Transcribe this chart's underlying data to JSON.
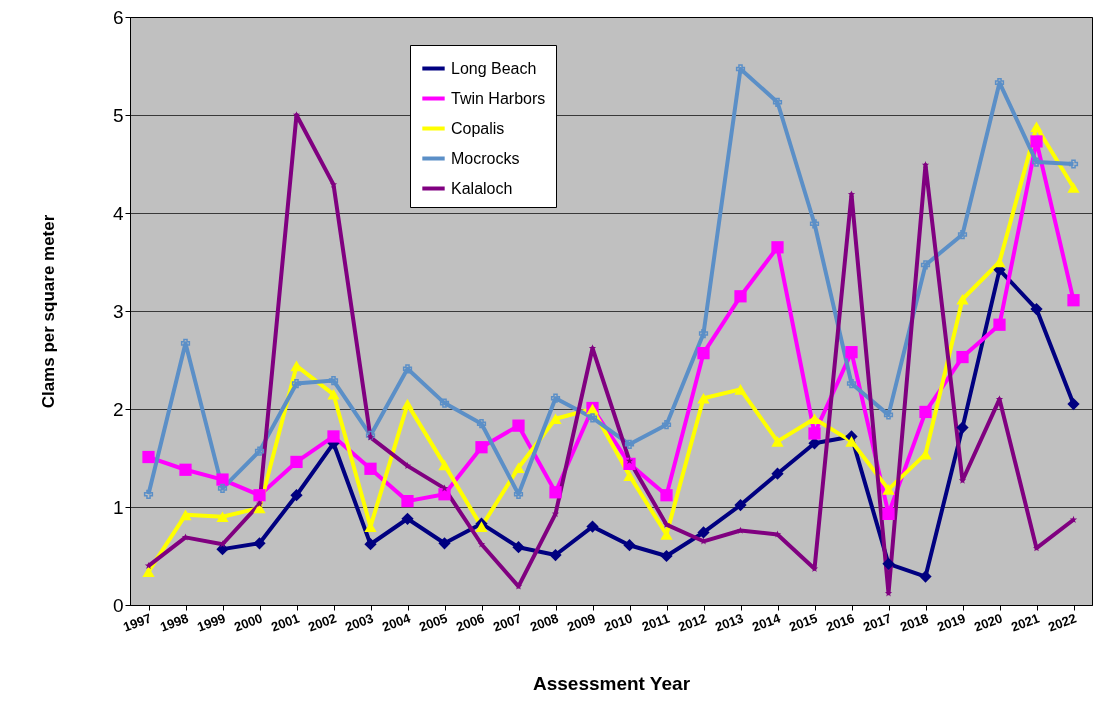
{
  "chart_data": {
    "type": "line",
    "xlabel": "Assessment Year",
    "ylabel": "Clams per square meter",
    "categories": [
      "1997",
      "1998",
      "1999",
      "2000",
      "2001",
      "2002",
      "2003",
      "2004",
      "2005",
      "2006",
      "2007",
      "2008",
      "2009",
      "2010",
      "2011",
      "2012",
      "2013",
      "2014",
      "2015",
      "2016",
      "2017",
      "2018",
      "2019",
      "2020",
      "2021",
      "2022"
    ],
    "series": [
      {
        "name": "Long Beach",
        "color": "#000080",
        "marker": "diamond",
        "values": [
          null,
          null,
          0.57,
          0.63,
          1.12,
          1.65,
          0.62,
          0.88,
          0.63,
          0.83,
          0.59,
          0.51,
          0.8,
          0.61,
          0.5,
          0.74,
          1.02,
          1.34,
          1.65,
          1.72,
          0.42,
          0.29,
          1.81,
          3.42,
          3.02,
          2.05
        ]
      },
      {
        "name": "Twin Harbors",
        "color": "#ff00ff",
        "marker": "square",
        "values": [
          1.51,
          1.38,
          1.28,
          1.12,
          1.46,
          1.72,
          1.39,
          1.06,
          1.13,
          1.61,
          1.83,
          1.15,
          2.01,
          1.44,
          1.12,
          2.57,
          3.15,
          3.65,
          1.75,
          2.58,
          0.93,
          1.97,
          2.53,
          2.86,
          4.73,
          3.11
        ]
      },
      {
        "name": "Copalis",
        "color": "#ffff00",
        "marker": "triangle",
        "values": [
          0.34,
          0.92,
          0.9,
          0.99,
          2.44,
          2.15,
          0.8,
          2.05,
          1.43,
          0.8,
          1.4,
          1.9,
          2.0,
          1.32,
          0.72,
          2.11,
          2.2,
          1.67,
          1.9,
          1.67,
          1.18,
          1.54,
          3.12,
          3.5,
          4.88,
          4.26
        ]
      },
      {
        "name": "Mocrocks",
        "color": "#5b8fc7",
        "marker": "cross",
        "values": [
          1.13,
          2.67,
          1.19,
          1.57,
          2.26,
          2.29,
          1.73,
          2.41,
          2.06,
          1.85,
          1.13,
          2.11,
          1.91,
          1.64,
          1.84,
          2.77,
          5.47,
          5.13,
          3.89,
          2.26,
          1.94,
          3.47,
          3.78,
          5.33,
          4.52,
          4.5
        ]
      },
      {
        "name": "Kalaloch",
        "color": "#800080",
        "marker": "star",
        "values": [
          0.4,
          0.69,
          0.62,
          1.03,
          5.0,
          4.29,
          1.71,
          1.42,
          1.19,
          0.62,
          0.19,
          0.93,
          2.62,
          1.47,
          0.82,
          0.65,
          0.76,
          0.72,
          0.37,
          4.19,
          0.12,
          4.49,
          1.27,
          2.1,
          0.58,
          0.87
        ]
      }
    ],
    "ylim": [
      0,
      6
    ],
    "yticks": [
      0,
      1,
      2,
      3,
      4,
      5,
      6
    ],
    "grid": "y",
    "legend": "top",
    "line_style": "solid"
  }
}
